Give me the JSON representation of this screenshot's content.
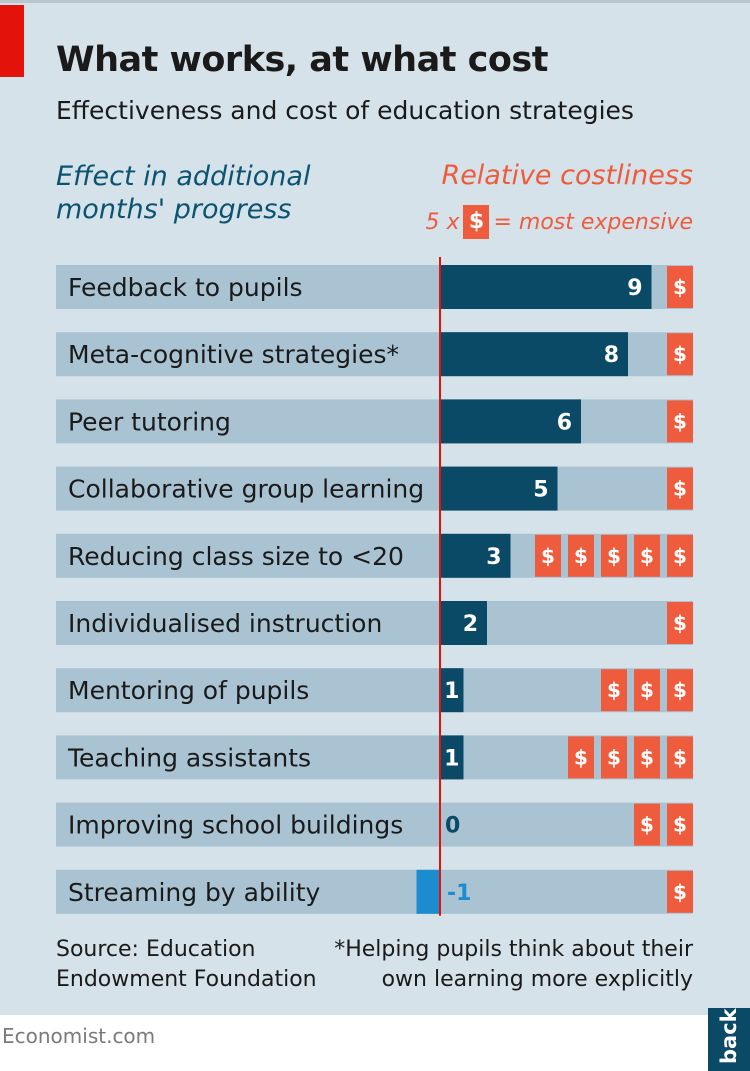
{
  "header": {
    "title": "What works, at what cost",
    "subtitle": "Effectiveness and cost of education strategies"
  },
  "legend": {
    "effect_line1": "Effect in additional",
    "effect_line2": "months' progress",
    "cost_title": "Relative costliness",
    "cost_multiplier": "5 x",
    "cost_symbol": "$",
    "cost_note": "= most expensive"
  },
  "footer": {
    "source_line1": "Source: Education",
    "source_line2": "Endowment Foundation",
    "note_line1": "*Helping pupils think about their",
    "note_line2": "own learning more explicitly",
    "site": "Economist.com",
    "back_label": "back"
  },
  "colors": {
    "bar_positive": "#0a4a66",
    "bar_negative": "#1a8ccf",
    "track": "#a9c3d3",
    "cost": "#ef5b3d",
    "axis": "#e3120b"
  },
  "chart_data": {
    "type": "bar",
    "orientation": "horizontal",
    "title": "What works, at what cost",
    "subtitle": "Effectiveness and cost of education strategies",
    "xlabel": "Effect in additional months' progress",
    "xlim": [
      -1,
      9
    ],
    "categories": [
      "Feedback to pupils",
      "Meta-cognitive strategies*",
      "Peer tutoring",
      "Collaborative group learning",
      "Reducing class size to <20",
      "Individualised instruction",
      "Mentoring of pupils",
      "Teaching assistants",
      "Improving school buildings",
      "Streaming by ability"
    ],
    "series": [
      {
        "name": "Effect in additional months' progress",
        "values": [
          9,
          8,
          6,
          5,
          3,
          2,
          1,
          1,
          0,
          -1
        ]
      },
      {
        "name": "Relative costliness",
        "values": [
          1,
          1,
          1,
          1,
          5,
          1,
          3,
          4,
          2,
          1
        ]
      }
    ],
    "value_labels": [
      "9",
      "8",
      "6",
      "5",
      "3",
      "2",
      "1",
      "1",
      "0",
      "-1"
    ]
  }
}
